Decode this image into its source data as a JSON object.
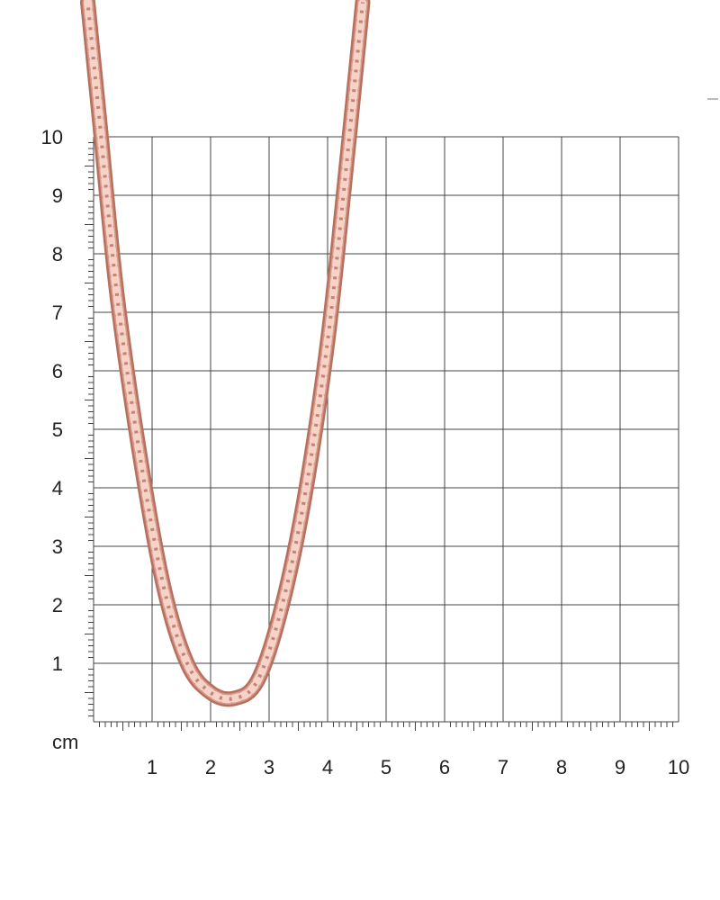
{
  "ruler": {
    "unit": "cm",
    "x_labels": [
      "1",
      "2",
      "3",
      "4",
      "5",
      "6",
      "7",
      "8",
      "9",
      "10"
    ],
    "y_labels": [
      "1",
      "2",
      "3",
      "4",
      "5",
      "6",
      "7",
      "8",
      "9",
      "10"
    ],
    "range_cm": [
      0,
      10
    ],
    "minor_divisions": 5
  },
  "colors": {
    "grid": "#444444",
    "chain_dark": "#b5705e",
    "chain_mid": "#d9998a",
    "chain_light": "#f6d3c8",
    "background": "#ffffff"
  },
  "chain": {
    "subject": "rose gold rope chain",
    "path_cm": [
      [
        -0.1,
        12.3
      ],
      [
        0.1,
        10.3
      ],
      [
        0.4,
        7.3
      ],
      [
        0.8,
        4.5
      ],
      [
        1.2,
        2.3
      ],
      [
        1.6,
        1.0
      ],
      [
        2.0,
        0.5
      ],
      [
        2.4,
        0.4
      ],
      [
        2.8,
        0.7
      ],
      [
        3.2,
        1.9
      ],
      [
        3.6,
        3.8
      ],
      [
        4.0,
        6.5
      ],
      [
        4.3,
        9.3
      ],
      [
        4.6,
        12.3
      ]
    ]
  }
}
